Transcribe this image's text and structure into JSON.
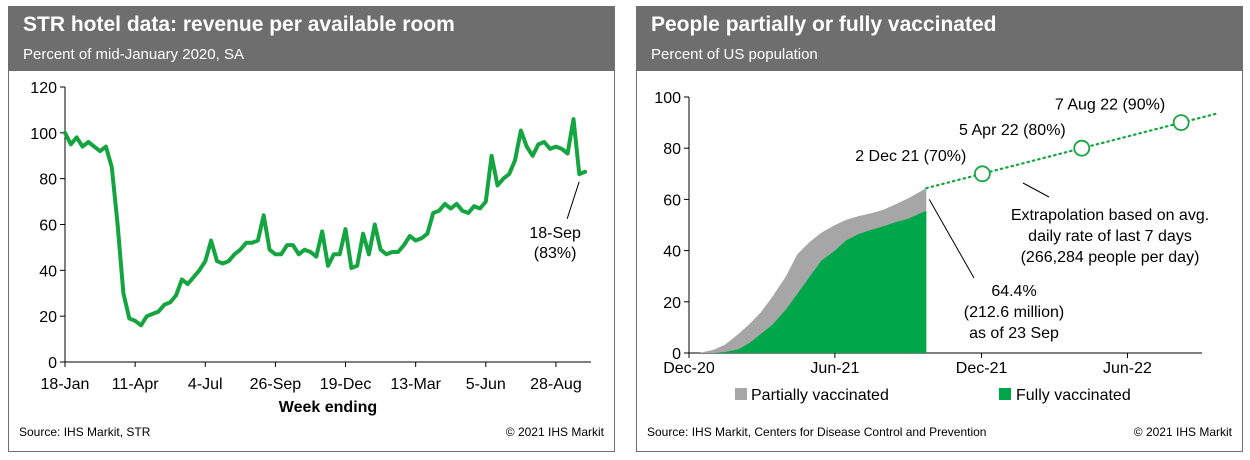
{
  "colors": {
    "header_bg": "#6e6e6e",
    "green": "#15a540",
    "fully": "#00a74a",
    "partial": "#a6a6a6"
  },
  "left": {
    "title": "STR hotel data: revenue per available room",
    "subtitle": "Percent of mid-January 2020, SA",
    "source": "Source: IHS Markit, STR",
    "copyright": "© 2021 IHS Markit"
  },
  "right": {
    "title": "People partially or fully vaccinated",
    "subtitle": "Percent of US population",
    "source": "Source: IHS Markit, Centers for Disease Control and Prevention",
    "copyright": "© 2021 IHS Markit"
  },
  "chart_data": [
    {
      "type": "line",
      "title": "STR hotel data: revenue per available room",
      "subtitle": "Percent of mid-January 2020, SA",
      "xlabel": "Week ending",
      "ylabel": "",
      "ylim": [
        0,
        120
      ],
      "yticks": [
        "0",
        "20",
        "40",
        "60",
        "80",
        "100",
        "120"
      ],
      "xticks": [
        "18-Jan",
        "11-Apr",
        "4-Jul",
        "26-Sep",
        "19-Dec",
        "13-Mar",
        "5-Jun",
        "28-Aug"
      ],
      "grid": false,
      "series": [
        {
          "values": [
            100,
            95,
            98,
            94,
            96,
            94,
            92,
            94,
            85,
            60,
            30,
            19,
            18,
            16,
            20,
            21,
            22,
            25,
            26,
            29,
            36,
            34,
            37,
            40,
            44,
            53,
            44,
            43,
            44,
            47,
            49,
            52,
            52,
            53,
            64,
            49,
            47,
            47,
            51,
            51,
            47,
            49,
            48,
            46,
            57,
            42,
            47,
            47,
            58,
            41,
            42,
            56,
            47,
            60,
            49,
            47,
            48,
            48,
            51,
            55,
            53,
            54,
            56,
            65,
            66,
            69,
            67,
            69,
            66,
            65,
            68,
            67,
            70,
            90,
            77,
            80,
            82,
            88,
            101,
            94,
            90,
            95,
            96,
            93,
            94,
            93,
            91,
            106,
            82,
            83
          ]
        }
      ],
      "annotations": [
        {
          "text_line1": "18-Sep",
          "text_line2": "(83%)"
        }
      ]
    },
    {
      "type": "area",
      "title": "People partially or fully vaccinated",
      "subtitle": "Percent of US population",
      "ylim": [
        0,
        100
      ],
      "yticks": [
        "0",
        "20",
        "40",
        "60",
        "80",
        "100"
      ],
      "xticks": [
        "Dec-20",
        "Jun-21",
        "Dec-21",
        "Jun-22"
      ],
      "x_start": "2020-12-01",
      "grid": false,
      "series": [
        {
          "name": "Partially vaccinated",
          "color": "#a6a6a6",
          "x": [
            "2020-12-14",
            "2021-01-01",
            "2021-01-15",
            "2021-02-01",
            "2021-02-15",
            "2021-03-01",
            "2021-03-15",
            "2021-04-01",
            "2021-04-15",
            "2021-05-01",
            "2021-05-15",
            "2021-06-01",
            "2021-06-15",
            "2021-07-01",
            "2021-07-15",
            "2021-08-01",
            "2021-08-15",
            "2021-09-01",
            "2021-09-15",
            "2021-09-23"
          ],
          "values": [
            0,
            1.3,
            3.3,
            7.5,
            11.5,
            16,
            22,
            30,
            38.5,
            43.5,
            47,
            50,
            52,
            53.5,
            54.5,
            56,
            58,
            60.5,
            63,
            64.4
          ]
        },
        {
          "name": "Fully vaccinated",
          "color": "#00a74a",
          "x": [
            "2020-12-14",
            "2021-01-01",
            "2021-01-15",
            "2021-02-01",
            "2021-02-15",
            "2021-03-01",
            "2021-03-15",
            "2021-04-01",
            "2021-04-15",
            "2021-05-01",
            "2021-05-15",
            "2021-06-01",
            "2021-06-15",
            "2021-07-01",
            "2021-07-15",
            "2021-08-01",
            "2021-08-15",
            "2021-09-01",
            "2021-09-15",
            "2021-09-23"
          ],
          "values": [
            0,
            0,
            0.4,
            1.5,
            4,
            7.5,
            11,
            17,
            23,
            30,
            36,
            40,
            44,
            46.5,
            48,
            49.5,
            51,
            52.5,
            54.5,
            55.5
          ]
        },
        {
          "name": "Extrapolation",
          "style": "dotted",
          "color": "#15a540",
          "x": [
            "2021-09-23",
            "2022-09-20"
          ],
          "values": [
            64.4,
            93.5
          ]
        }
      ],
      "milestones": [
        {
          "date": "2021-12-02",
          "value": 70,
          "label": "2 Dec 21 (70%)"
        },
        {
          "date": "2022-04-05",
          "value": 80,
          "label": "5 Apr 22 (80%)"
        },
        {
          "date": "2022-08-07",
          "value": 90,
          "label": "7 Aug 22 (90%)"
        }
      ],
      "annotations": [
        {
          "lines": [
            "Extrapolation based on avg.",
            "daily rate of last 7 days",
            "(266,284 people per day)"
          ]
        },
        {
          "lines": [
            "64.4%",
            "(212.6 million)",
            "as of 23 Sep"
          ]
        }
      ],
      "legend": {
        "placement": "bottom",
        "items": [
          "Partially vaccinated",
          "Fully vaccinated"
        ]
      }
    }
  ]
}
